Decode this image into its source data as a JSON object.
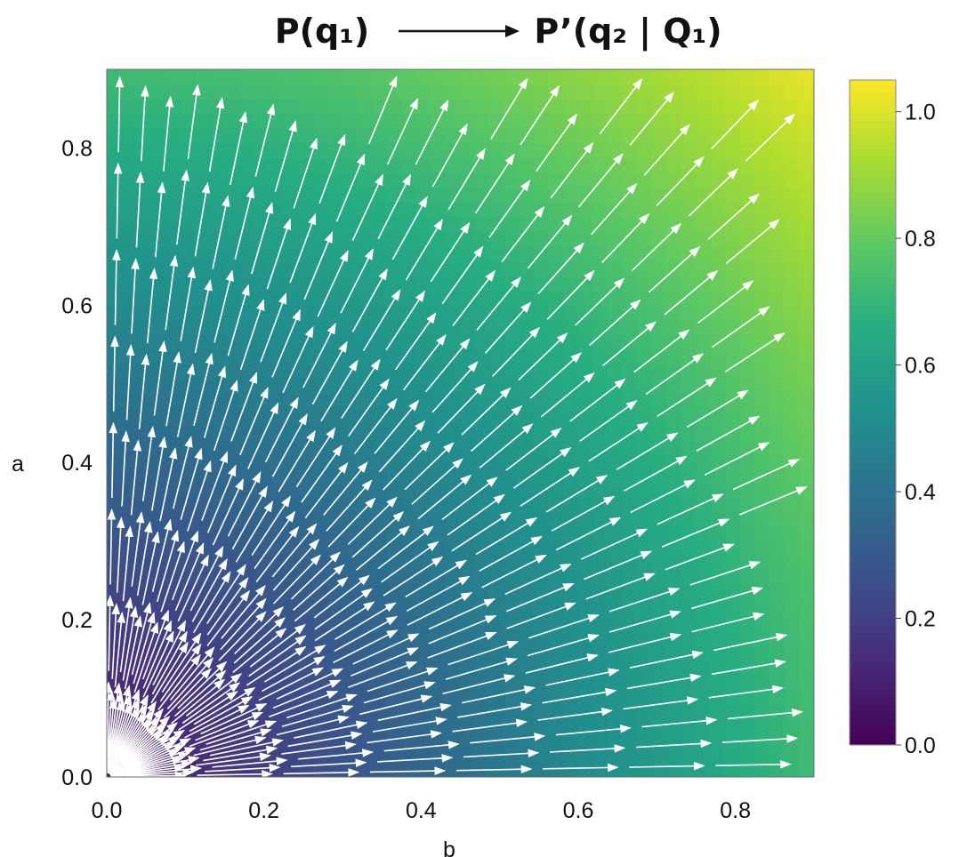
{
  "header": {
    "left": "P(q₁)",
    "right": "P’(q₂ | Q₁)"
  },
  "chart_data": {
    "type": "heatmap",
    "subtype": "quiver",
    "xlabel": "b",
    "ylabel": "a",
    "xlim": [
      0.0,
      0.9
    ],
    "ylim": [
      0.0,
      0.9
    ],
    "x_ticks": [
      0.0,
      0.2,
      0.4,
      0.6,
      0.8
    ],
    "y_ticks": [
      0.0,
      0.2,
      0.4,
      0.6,
      0.8
    ],
    "colorbar": {
      "colormap": "viridis",
      "range": [
        0.0,
        1.05
      ],
      "ticks": [
        0.0,
        0.2,
        0.4,
        0.6,
        0.8,
        1.0
      ]
    },
    "field": "radial vectors pointing away from origin (0,0); color intensity increases with distance from origin",
    "arrow_color": "#ffffff",
    "grid": false
  }
}
